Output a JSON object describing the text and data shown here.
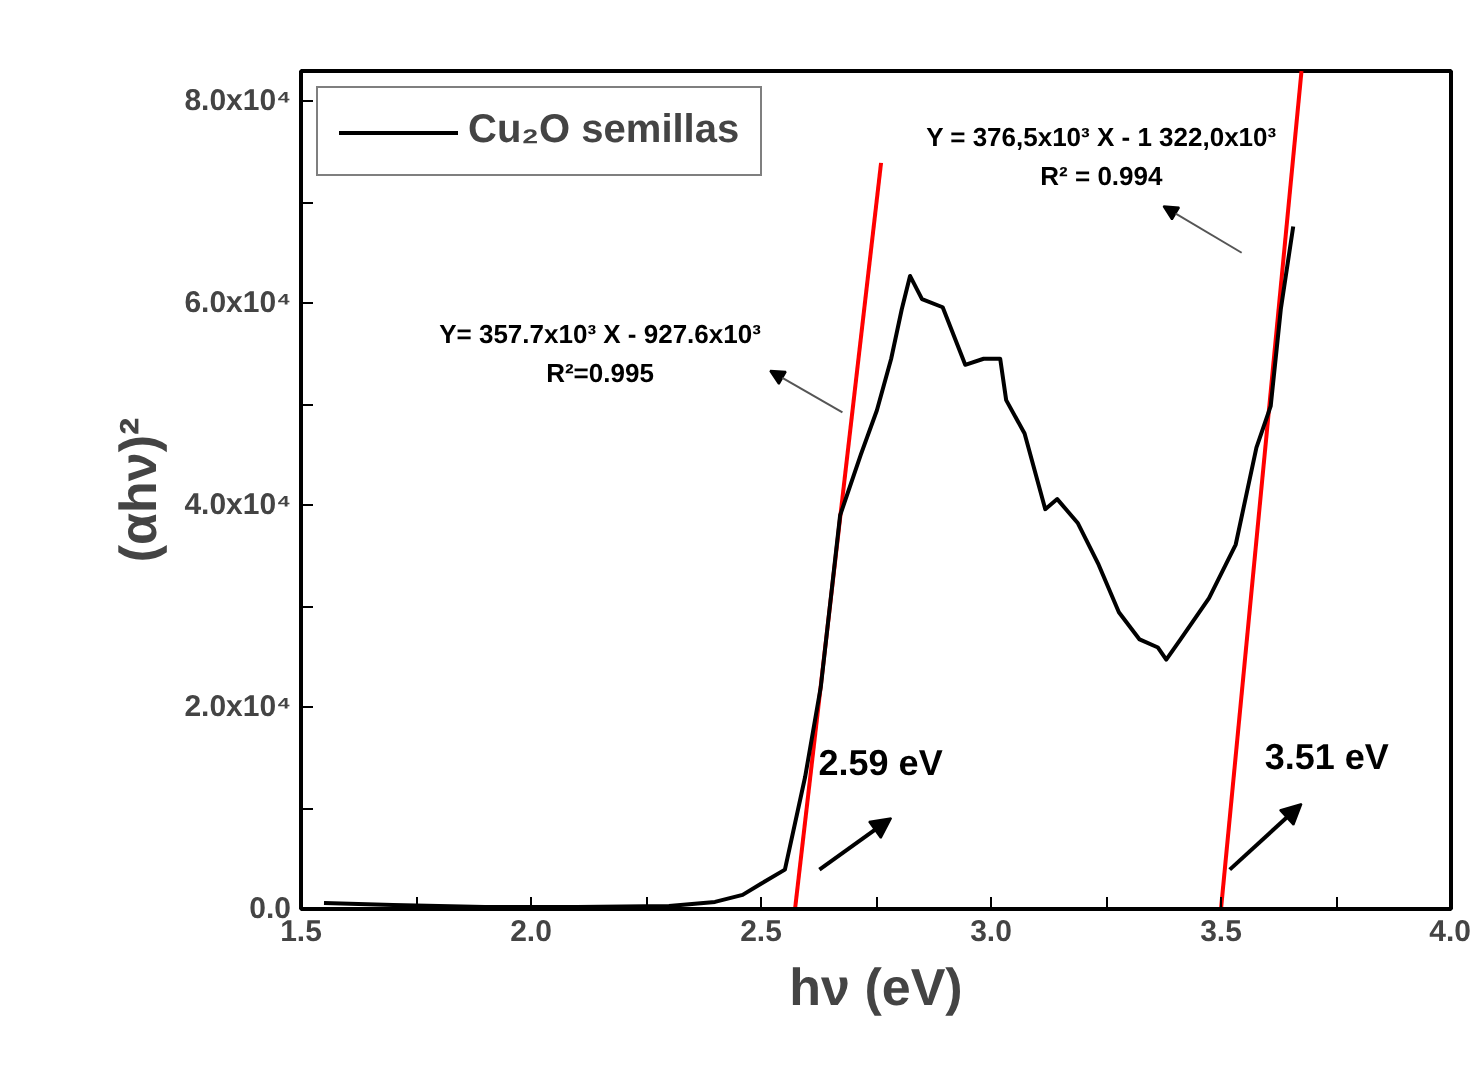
{
  "chart_data": {
    "type": "line",
    "xlabel": "hν (eV)",
    "ylabel": "(αhν)²",
    "xlim": [
      1.5,
      4.0
    ],
    "ylim": [
      0,
      83000
    ],
    "xticks": [
      1.5,
      {
        "value": 1.75,
        "label": null
      },
      {
        "value": 2,
        "label": "2.0"
      },
      {
        "value": 2.25,
        "label": null
      },
      2.5,
      {
        "value": 2.75,
        "label": null
      },
      {
        "value": 3,
        "label": "3.0"
      },
      {
        "value": 3.25,
        "label": null
      },
      3.5,
      {
        "value": 3.75,
        "label": null
      },
      {
        "value": 4,
        "label": "4.0"
      }
    ],
    "yticks": [
      {
        "value": 0,
        "label": "0.0"
      },
      {
        "value": 10000,
        "label": null
      },
      {
        "value": 20000,
        "label": "2.0x10⁴"
      },
      {
        "value": 30000,
        "label": null
      },
      {
        "value": 40000,
        "label": "4.0x10⁴"
      },
      {
        "value": 50000,
        "label": null
      },
      {
        "value": 60000,
        "label": "6.0x10⁴"
      },
      {
        "value": 70000,
        "label": null
      },
      {
        "value": 80000,
        "label": "8.0x10⁴"
      }
    ],
    "grid": false,
    "legend": "top left",
    "series": [
      {
        "name": "Cu₂O semillas",
        "color": "#000000",
        "x": [
          1.55,
          1.7,
          1.9,
          2.1,
          2.3,
          2.4,
          2.46,
          2.5,
          2.552,
          2.596,
          2.63,
          2.672,
          2.717,
          2.752,
          2.783,
          2.806,
          2.824,
          2.85,
          2.895,
          2.944,
          2.984,
          3.02,
          3.033,
          3.073,
          3.118,
          3.144,
          3.189,
          3.234,
          3.278,
          3.323,
          3.363,
          3.381,
          3.412,
          3.474,
          3.532,
          3.577,
          3.608,
          3.63,
          3.657
        ],
        "values": [
          600,
          400,
          200,
          200,
          300,
          700,
          1400,
          2500,
          3900,
          13100,
          22000,
          39000,
          45000,
          49400,
          54500,
          59400,
          62700,
          60400,
          59600,
          53900,
          54500,
          54500,
          50400,
          47100,
          39600,
          40600,
          38200,
          34100,
          29400,
          26700,
          25900,
          24700,
          26700,
          30800,
          36100,
          45700,
          49800,
          59400,
          67600
        ]
      },
      {
        "type": "line",
        "color": "#ff0000",
        "x": [
          2.574,
          2.761
        ],
        "values": [
          0,
          73900
        ]
      },
      {
        "type": "line",
        "color": "#ff0000",
        "x": [
          3.5,
          3.675
        ],
        "values": [
          0,
          83000
        ]
      }
    ],
    "annotations": [
      "Y= 357.7x10³ X - 927.6x10³\nR²=0.995",
      "Y = 376,5x10³ X - 1 322,0x10³\nR² = 0.994",
      "2.59 eV",
      "3.51 eV"
    ]
  }
}
